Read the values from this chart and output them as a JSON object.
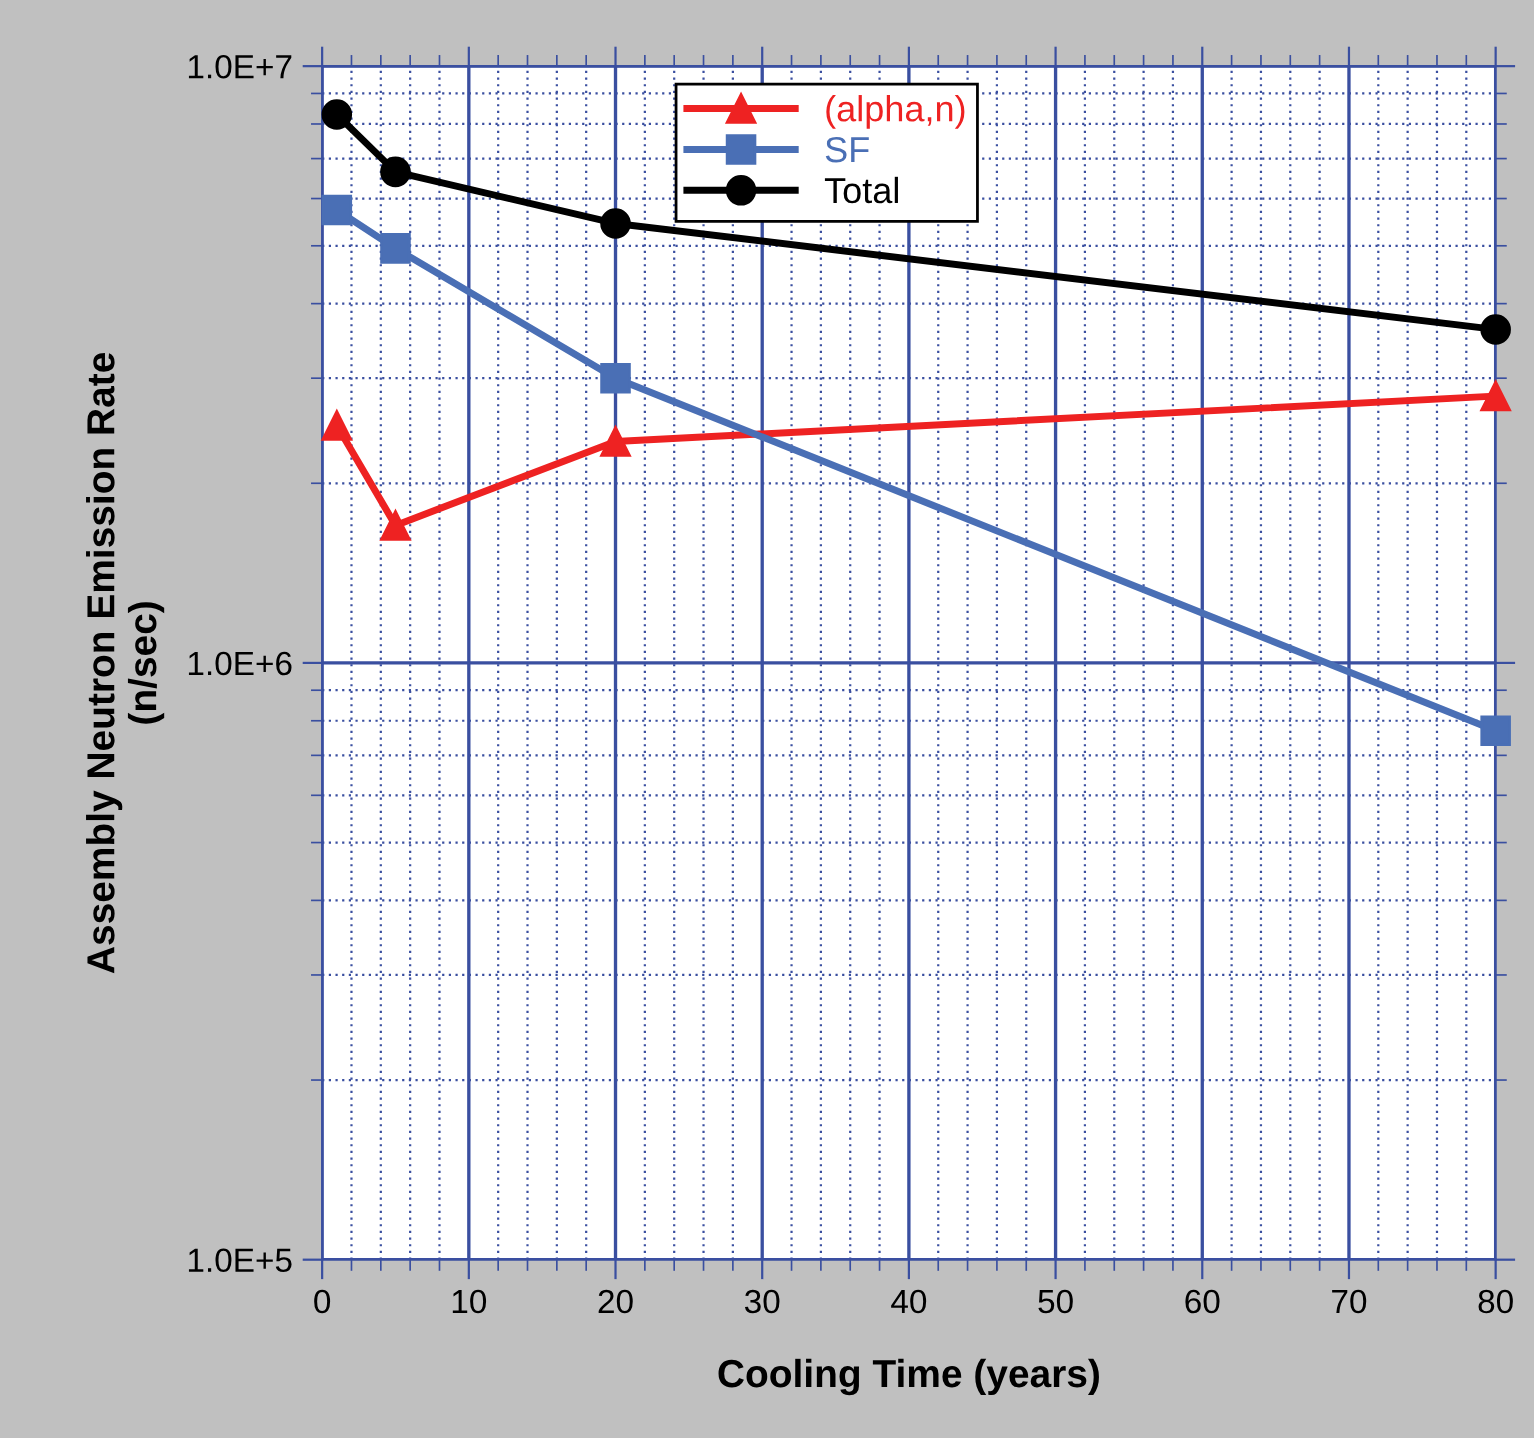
{
  "chart_data": {
    "type": "line",
    "xlabel": "Cooling Time (years)",
    "ylabel": "Assembly Neutron Emission Rate\n(n/sec)",
    "x": [
      1,
      5,
      20,
      80
    ],
    "series": [
      {
        "name": "(alpha,n)",
        "color": "#ee2222",
        "marker": "triangle",
        "values": [
          2500000,
          1700000,
          2350000,
          2800000
        ]
      },
      {
        "name": "SF",
        "color": "#4a6fb5",
        "marker": "square",
        "values": [
          5740000,
          4950000,
          3000000,
          770000
        ]
      },
      {
        "name": "Total",
        "color": "#000000",
        "marker": "circle",
        "values": [
          8300000,
          6650000,
          5450000,
          3620000
        ]
      }
    ],
    "log": "y",
    "xlim": [
      0,
      80
    ],
    "xticks": [
      0,
      {
        "value": 2,
        "label": null
      },
      {
        "value": 4,
        "label": null
      },
      {
        "value": 6,
        "label": null
      },
      {
        "value": 8,
        "label": null
      },
      10,
      {
        "value": 12,
        "label": null
      },
      {
        "value": 14,
        "label": null
      },
      {
        "value": 16,
        "label": null
      },
      {
        "value": 18,
        "label": null
      },
      20,
      {
        "value": 22,
        "label": null
      },
      {
        "value": 24,
        "label": null
      },
      {
        "value": 26,
        "label": null
      },
      {
        "value": 28,
        "label": null
      },
      30,
      {
        "value": 32,
        "label": null
      },
      {
        "value": 34,
        "label": null
      },
      {
        "value": 36,
        "label": null
      },
      {
        "value": 38,
        "label": null
      },
      40,
      {
        "value": 42,
        "label": null
      },
      {
        "value": 44,
        "label": null
      },
      {
        "value": 46,
        "label": null
      },
      {
        "value": 48,
        "label": null
      },
      50,
      {
        "value": 52,
        "label": null
      },
      {
        "value": 54,
        "label": null
      },
      {
        "value": 56,
        "label": null
      },
      {
        "value": 58,
        "label": null
      },
      60,
      {
        "value": 62,
        "label": null
      },
      {
        "value": 64,
        "label": null
      },
      {
        "value": 66,
        "label": null
      },
      {
        "value": 68,
        "label": null
      },
      70,
      {
        "value": 72,
        "label": null
      },
      {
        "value": 74,
        "label": null
      },
      {
        "value": 76,
        "label": null
      },
      {
        "value": 78,
        "label": null
      },
      80
    ],
    "ylim": [
      100000,
      10000000
    ],
    "yticks": [
      {
        "value": 100000,
        "label": "1.0E+5"
      },
      {
        "value": 200000,
        "label": null
      },
      {
        "value": 300000,
        "label": null
      },
      {
        "value": 400000,
        "label": null
      },
      {
        "value": 500000,
        "label": null
      },
      {
        "value": 600000,
        "label": null
      },
      {
        "value": 700000,
        "label": null
      },
      {
        "value": 800000,
        "label": null
      },
      {
        "value": 900000,
        "label": null
      },
      {
        "value": 1000000,
        "label": "1.0E+6"
      },
      {
        "value": 2000000,
        "label": null
      },
      {
        "value": 3000000,
        "label": null
      },
      {
        "value": 4000000,
        "label": null
      },
      {
        "value": 5000000,
        "label": null
      },
      {
        "value": 6000000,
        "label": null
      },
      {
        "value": 7000000,
        "label": null
      },
      {
        "value": 8000000,
        "label": null
      },
      {
        "value": 9000000,
        "label": null
      },
      {
        "value": 10000000,
        "label": "1.0E+7"
      }
    ],
    "grid": true,
    "legend": "top",
    "line_style": "solid"
  }
}
